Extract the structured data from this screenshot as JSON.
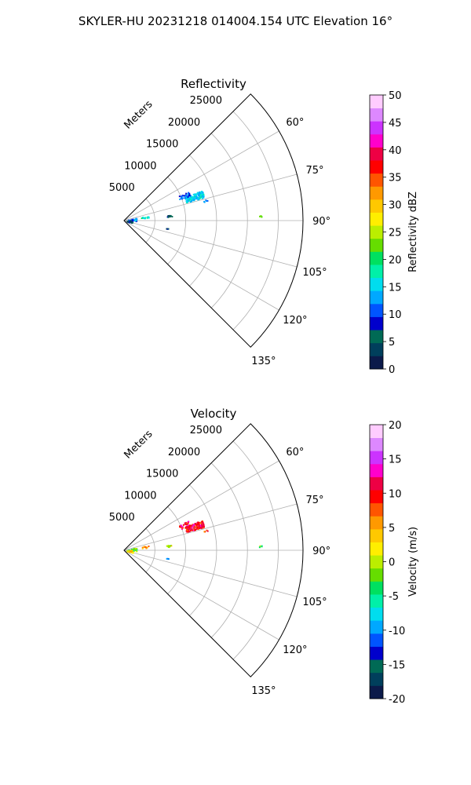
{
  "figure": {
    "title": "SKYLER-HU  20231218  014004.154 UTC Elevation 16°"
  },
  "chart_data": [
    {
      "type": "polar-sector",
      "title": "Reflectivity",
      "range_axis_label": "Meters",
      "range_ticks": [
        5000,
        10000,
        15000,
        20000,
        25000
      ],
      "range_max": 29000,
      "azimuth_ticks": [
        "60°",
        "75°",
        "90°",
        "105°",
        "120°",
        "135°"
      ],
      "azimuth_tick_values": [
        60,
        75,
        90,
        105,
        120,
        135
      ],
      "azimuth_range": [
        45,
        135
      ],
      "grid": true,
      "colorbar": {
        "label": "Reflectivity dBZ",
        "min": 0,
        "max": 50,
        "ticks": [
          0,
          5,
          10,
          15,
          20,
          25,
          30,
          35,
          40,
          45,
          50
        ],
        "palette": [
          "#0b1a4a",
          "#003f5c",
          "#006a55",
          "#0000cc",
          "#0055ff",
          "#00a8ff",
          "#00ddee",
          "#00f0a8",
          "#00e060",
          "#66dd00",
          "#bbee00",
          "#ffee00",
          "#ffc800",
          "#ff9900",
          "#ff5500",
          "#ff0000",
          "#ee0044",
          "#ff00cc",
          "#cc33ff",
          "#dd88ff",
          "#ffccff"
        ]
      },
      "echoes": [
        {
          "azimuth": 71,
          "range": 12000,
          "spread_az": 2.5,
          "spread_r": 1500,
          "value": 15,
          "count": 140
        },
        {
          "azimuth": 67,
          "range": 10500,
          "spread_az": 2.0,
          "spread_r": 900,
          "value": 10,
          "count": 30
        },
        {
          "azimuth": 84,
          "range": 7300,
          "spread_az": 1.2,
          "spread_r": 500,
          "value": 5,
          "count": 12
        },
        {
          "azimuth": 80,
          "range": 3400,
          "spread_az": 3,
          "spread_r": 600,
          "value": 17,
          "count": 12
        },
        {
          "azimuth": 84,
          "range": 1300,
          "spread_az": 8,
          "spread_r": 700,
          "value": 12,
          "count": 40
        },
        {
          "azimuth": 95,
          "range": 900,
          "spread_az": 10,
          "spread_r": 500,
          "value": 5,
          "count": 30
        },
        {
          "azimuth": 88,
          "range": 22000,
          "spread_az": 0.4,
          "spread_r": 250,
          "value": 20,
          "count": 4
        },
        {
          "azimuth": 100,
          "range": 7100,
          "spread_az": 0.5,
          "spread_r": 200,
          "value": 5,
          "count": 3
        },
        {
          "azimuth": 76,
          "range": 13500,
          "spread_az": 0.6,
          "spread_r": 400,
          "value": 12,
          "count": 5
        }
      ]
    },
    {
      "type": "polar-sector",
      "title": "Velocity",
      "range_axis_label": "Meters",
      "range_ticks": [
        5000,
        10000,
        15000,
        20000,
        25000
      ],
      "range_max": 29000,
      "azimuth_ticks": [
        "60°",
        "75°",
        "90°",
        "105°",
        "120°",
        "135°"
      ],
      "azimuth_tick_values": [
        60,
        75,
        90,
        105,
        120,
        135
      ],
      "azimuth_range": [
        45,
        135
      ],
      "grid": true,
      "colorbar": {
        "label": "Velocity (m/s)",
        "min": -20,
        "max": 20,
        "ticks": [
          -20,
          -15,
          -10,
          -5,
          0,
          5,
          10,
          15,
          20
        ],
        "palette": [
          "#0b1a4a",
          "#003f5c",
          "#006a55",
          "#0000cc",
          "#0055ff",
          "#00a8ff",
          "#00ddee",
          "#00f0a8",
          "#00e060",
          "#66dd00",
          "#bbee00",
          "#ffee00",
          "#ffc800",
          "#ff9900",
          "#ff5500",
          "#ff0000",
          "#ee0044",
          "#ff00cc",
          "#cc33ff",
          "#dd88ff",
          "#ffccff"
        ]
      },
      "echoes": [
        {
          "azimuth": 71,
          "range": 12000,
          "spread_az": 2.5,
          "spread_r": 1500,
          "value": 10,
          "count": 140
        },
        {
          "azimuth": 67,
          "range": 10500,
          "spread_az": 2.0,
          "spread_r": 900,
          "value": 11,
          "count": 30
        },
        {
          "azimuth": 84,
          "range": 7300,
          "spread_az": 1.2,
          "spread_r": 500,
          "value": 1,
          "count": 12
        },
        {
          "azimuth": 80,
          "range": 3400,
          "spread_az": 3,
          "spread_r": 600,
          "value": 6,
          "count": 12
        },
        {
          "azimuth": 84,
          "range": 1300,
          "spread_az": 8,
          "spread_r": 700,
          "value": -3,
          "count": 40
        },
        {
          "azimuth": 95,
          "range": 900,
          "spread_az": 10,
          "spread_r": 500,
          "value": 3,
          "count": 30
        },
        {
          "azimuth": 88,
          "range": 22000,
          "spread_az": 0.4,
          "spread_r": 250,
          "value": -3,
          "count": 4
        },
        {
          "azimuth": 100,
          "range": 7100,
          "spread_az": 0.5,
          "spread_r": 200,
          "value": -12,
          "count": 3
        },
        {
          "azimuth": 76,
          "range": 13500,
          "spread_az": 0.6,
          "spread_r": 400,
          "value": 9,
          "count": 5
        }
      ]
    }
  ]
}
